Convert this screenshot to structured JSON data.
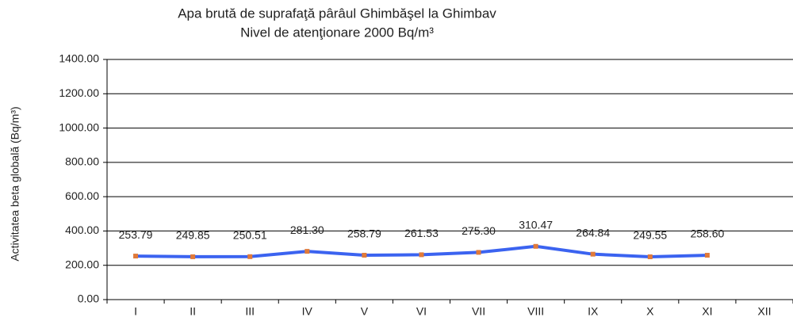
{
  "chart_data": {
    "type": "line",
    "title": "Apa brută de suprafaţă pârâul Ghimbăşel la Ghimbav",
    "subtitle": "Nivel de atenţionare 2000 Bq/m³",
    "y_label": "Activitatea  beta globală (Bq/m³)",
    "categories": [
      "I",
      "II",
      "III",
      "IV",
      "V",
      "VI",
      "VII",
      "VIII",
      "IX",
      "X",
      "XI",
      "XII"
    ],
    "series": [
      {
        "name": "Activitatea beta globală",
        "color": "#3b63f0",
        "marker_color": "#e07a3a",
        "values": [
          253.79,
          249.85,
          250.51,
          281.3,
          258.79,
          261.53,
          275.3,
          310.47,
          264.84,
          249.55,
          258.6,
          null
        ],
        "value_labels": [
          "253.79",
          "249.85",
          "250.51",
          "281.30",
          "258.79",
          "261.53",
          "275.30",
          "310.47",
          "264.84",
          "249.55",
          "258.60",
          null
        ]
      }
    ],
    "ylim": [
      0,
      1400
    ],
    "yticks": [
      {
        "value": 0,
        "label": "0.00"
      },
      {
        "value": 200,
        "label": "200.00"
      },
      {
        "value": 400,
        "label": "400.00"
      },
      {
        "value": 600,
        "label": "600.00"
      },
      {
        "value": 800,
        "label": "800.00"
      },
      {
        "value": 1000,
        "label": "1000.00"
      },
      {
        "value": 1200,
        "label": "1200.00"
      },
      {
        "value": 1400,
        "label": "1400.00"
      }
    ],
    "grid": true
  }
}
